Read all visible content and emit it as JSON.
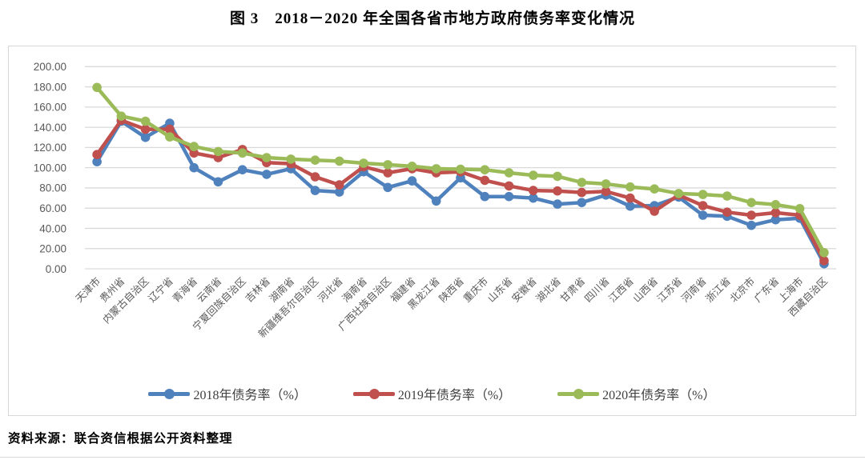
{
  "title": "图 3　2018－2020 年全国各省市地方政府债务率变化情况",
  "source_note": "资料来源：联合资信根据公开资料整理",
  "colors": {
    "grid": "#d9d9d9",
    "axis_text": "#595959",
    "series_2018": "#4F81BD",
    "series_2019": "#C0504D",
    "series_2020": "#9BBB59"
  },
  "chart_data": {
    "type": "line",
    "title": "图 3　2018－2020 年全国各省市地方政府债务率变化情况",
    "xlabel": "",
    "ylabel": "",
    "ylim": [
      0,
      200
    ],
    "ytick_step": 20,
    "ytick_labels": [
      "0.00",
      "20.00",
      "40.00",
      "60.00",
      "80.00",
      "100.00",
      "120.00",
      "140.00",
      "160.00",
      "180.00",
      "200.00"
    ],
    "grid": true,
    "legend_position": "bottom",
    "categories": [
      "天津市",
      "贵州省",
      "内蒙古自治区",
      "辽宁省",
      "青海省",
      "云南省",
      "宁夏回族自治区",
      "吉林省",
      "湖南省",
      "新疆维吾尔自治区",
      "河北省",
      "海南省",
      "广西壮族自治区",
      "福建省",
      "黑龙江省",
      "陕西省",
      "重庆市",
      "山东省",
      "安徽省",
      "湖北省",
      "甘肃省",
      "四川省",
      "江西省",
      "山西省",
      "江苏省",
      "河南省",
      "浙江省",
      "北京市",
      "广东省",
      "上海市",
      "西藏自治区"
    ],
    "series": [
      {
        "name": "2018年债务率（%）",
        "color": "#4F81BD",
        "values": [
          106,
          146,
          130,
          144,
          100,
          86,
          98,
          93.5,
          99,
          77.5,
          76,
          96,
          80.5,
          87,
          67,
          90,
          71.5,
          71.5,
          70,
          64,
          65.5,
          73,
          62,
          62.5,
          71,
          53,
          52,
          43,
          48.5,
          50,
          5
        ]
      },
      {
        "name": "2019年债务率（%）",
        "color": "#C0504D",
        "values": [
          113,
          147,
          138,
          138,
          114.5,
          110,
          118,
          105,
          104,
          91,
          83,
          101,
          95,
          99,
          95,
          96,
          87.5,
          82,
          77.5,
          77,
          75.5,
          76.5,
          70,
          57,
          73,
          62.5,
          56,
          53,
          55.5,
          53,
          8
        ]
      },
      {
        "name": "2020年债务率（%）",
        "color": "#9BBB59",
        "values": [
          179.4,
          151,
          146,
          130.5,
          121,
          116,
          114.5,
          110,
          108.5,
          107.5,
          106.5,
          104.5,
          103,
          101.5,
          99,
          98.5,
          98,
          95,
          92.5,
          91.5,
          85.5,
          84,
          81,
          79,
          74.5,
          73.5,
          72,
          65.5,
          63.5,
          59.5,
          16
        ]
      }
    ]
  }
}
